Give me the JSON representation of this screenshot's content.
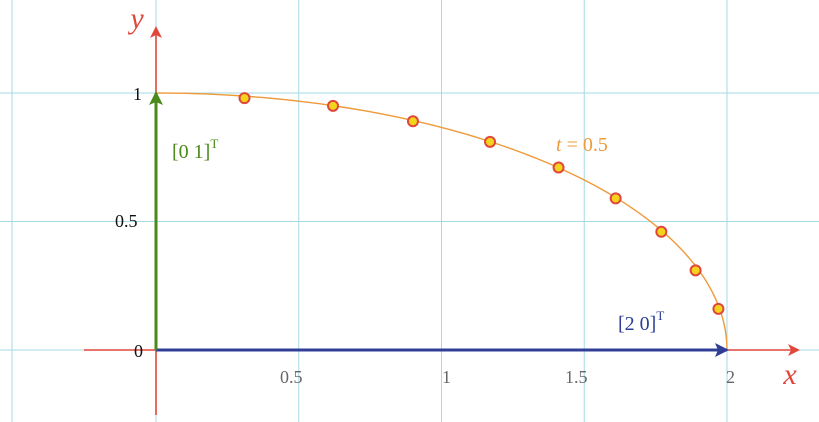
{
  "colors": {
    "grid": "#a6dbe3",
    "axis": "#e0463b",
    "curve": "#ee9a3a",
    "point_fill": "#f3d31c",
    "point_stroke": "#e0463b",
    "vec_x": "#2f3f96",
    "vec_y": "#4b8a1a",
    "tick_text": "#666666",
    "origin_text": "#111111"
  },
  "axes": {
    "x_label": "x",
    "y_label": "y",
    "x_ticks": [
      "0.5",
      "1",
      "1.5",
      "2"
    ],
    "y_ticks": [
      "0.5",
      "1"
    ],
    "origin_label": "0"
  },
  "vectors": {
    "x_vec": {
      "text": "[2  0]",
      "sup": "T",
      "to": [
        2,
        0
      ]
    },
    "y_vec": {
      "text": "[0  1]",
      "sup": "T",
      "to": [
        0,
        1
      ]
    }
  },
  "curve": {
    "t_symbol": "t",
    "t_eq": " = 0.5"
  },
  "chart_data": {
    "type": "scatter",
    "xlim": [
      -0.5,
      2.25
    ],
    "ylim": [
      -0.2,
      1.25
    ],
    "curve_function": "quarter ellipse x = 2cos(θ), y = sin(θ)",
    "points": [
      {
        "x": 0.31,
        "y": 0.98
      },
      {
        "x": 0.62,
        "y": 0.95
      },
      {
        "x": 0.9,
        "y": 0.89
      },
      {
        "x": 1.17,
        "y": 0.81
      },
      {
        "x": 1.41,
        "y": 0.71
      },
      {
        "x": 1.61,
        "y": 0.59
      },
      {
        "x": 1.77,
        "y": 0.46
      },
      {
        "x": 1.89,
        "y": 0.31
      },
      {
        "x": 1.97,
        "y": 0.16
      }
    ]
  }
}
